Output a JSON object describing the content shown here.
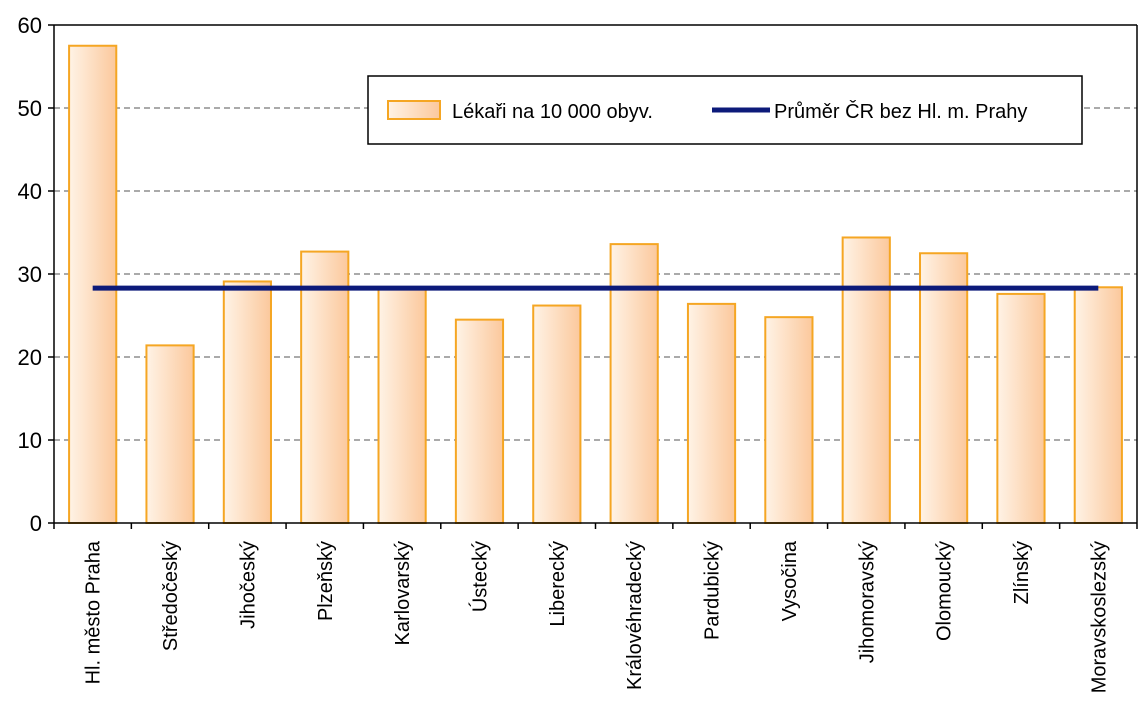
{
  "chart_data": {
    "type": "bar",
    "categories": [
      "Hl. město Praha",
      "Středočeský",
      "Jihočeský",
      "Plzeňský",
      "Karlovarský",
      "Ústecký",
      "Liberecký",
      "Královéhradecký",
      "Pardubický",
      "Vysočina",
      "Jihomoravský",
      "Olomoucký",
      "Zlínský",
      "Moravskoslezský"
    ],
    "series": [
      {
        "name": "Lékaři na 10 000 obyv.",
        "type": "bar",
        "values": [
          57.5,
          21.4,
          29.1,
          32.7,
          28.3,
          24.5,
          26.2,
          33.6,
          26.4,
          24.8,
          34.4,
          32.5,
          27.6,
          28.4
        ]
      },
      {
        "name": "Průměr ČR bez Hl. m. Prahy",
        "type": "line",
        "value": 28.3
      }
    ],
    "yticks": [
      "0",
      "10",
      "20",
      "30",
      "40",
      "50",
      "60"
    ],
    "ylim": [
      0,
      60
    ],
    "grid": "horizontal dashed",
    "legend_position": "top-right",
    "colors": {
      "bar_stroke": "#f5a623",
      "bar_fill_light": "#fff3e6",
      "bar_fill_dark": "#fbc89c",
      "line": "#0c1a7a",
      "grid": "#555555"
    }
  }
}
